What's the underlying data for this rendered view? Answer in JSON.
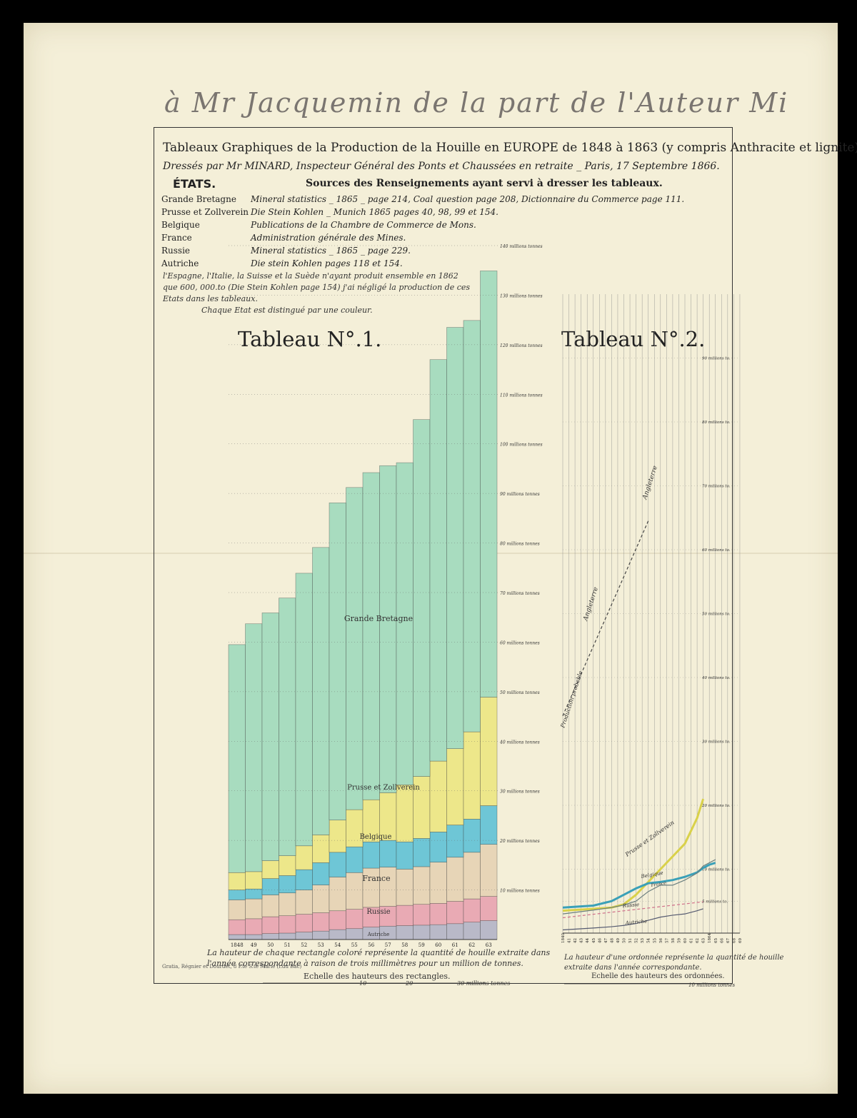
{
  "inscription": "à Mr Jacquemin de la part de l'Auteur Mi",
  "header": {
    "title": "Tableaux Graphiques de la Production de la Houille en EUROPE de 1848 à 1863 (y compris Anthracite et lignite)",
    "subtitle": "Dressés par Mr MINARD, Inspecteur Général des Ponts et Chaussées en retraite _ Paris, 17 Septembre 1866.",
    "etats_label": "ÉTATS.",
    "sources_heading": "Sources des Renseignements ayant servi à dresser les tableaux."
  },
  "sources": [
    {
      "state": "Grande Bretagne",
      "text": "Mineral statistics _ 1865 _ page 214, Coal question page 208, Dictionnaire du Commerce page 111."
    },
    {
      "state": "Prusse et Zollverein",
      "text": "Die Stein Kohlen _ Munich 1865 pages 40, 98, 99 et 154."
    },
    {
      "state": "Belgique",
      "text": "Publications de la Chambre de Commerce de Mons."
    },
    {
      "state": "France",
      "text": "Administration générale des Mines."
    },
    {
      "state": "Russie",
      "text": "Mineral statistics _ 1865 _ page 229."
    },
    {
      "state": "Autriche",
      "text": "Die stein Kohlen pages 118 et 154."
    }
  ],
  "notes": {
    "line1": "l'Espagne, l'Italie, la Suisse et la Suède n'ayant produit ensemble en 1862",
    "line2": "que 600, 000.to (Die Stein Kohlen page 154) j'ai négligé la production de ces",
    "line3": "Etats dans les tableaux.",
    "line4": "Chaque Etat est distingué par une couleur."
  },
  "tableau1": {
    "title": "Tableau N°.1.",
    "caption1": "La hauteur de chaque rectangle coloré représente la quantité de houille extraite dans",
    "caption2": "l'année correspondante à raison de trois millimètres pour un million de tonnes.",
    "scale_label": "Echelle des hauteurs des rectangles.",
    "scale_ticks": [
      "10",
      "20",
      "30 millions tonnes"
    ]
  },
  "tableau2": {
    "title": "Tableau N°.2.",
    "caption1": "La hauteur d'une ordonnée représente la quantité de houille",
    "caption2": "extraite dans l'année correspondante.",
    "scale_label": "Echelle des hauteurs des ordonnées.",
    "scale_end": "10 millions tonnes",
    "line_labels": {
      "angleterre": "Angleterre",
      "probable": "Production probable",
      "prusse": "Prusse et Zollverein",
      "belgique": "Belgique",
      "france": "France",
      "russie": "Russie",
      "autriche": "Autriche"
    }
  },
  "stamp": "Gratia, Régnier et Dourdet, 8 P.te S.te Marie (r.du Bac)",
  "chart_data": [
    {
      "type": "bar",
      "stacked": true,
      "categories": [
        "1848",
        "49",
        "50",
        "51",
        "52",
        "53",
        "54",
        "55",
        "56",
        "57",
        "58",
        "59",
        "60",
        "61",
        "62",
        "63"
      ],
      "series": [
        {
          "name": "Autriche",
          "color": "#b9b9c8",
          "values": [
            1,
            1,
            1.2,
            1.3,
            1.5,
            1.7,
            2,
            2.2,
            2.5,
            2.7,
            2.8,
            2.9,
            3,
            3.2,
            3.5,
            3.8
          ]
        },
        {
          "name": "Russie",
          "color": "#e9aab4",
          "values": [
            3,
            3.2,
            3.4,
            3.5,
            3.6,
            3.7,
            3.8,
            3.9,
            4,
            4,
            4.1,
            4.2,
            4.3,
            4.5,
            4.7,
            4.9
          ]
        },
        {
          "name": "France",
          "color": "#e7d5b7",
          "values": [
            4,
            4,
            4.4,
            4.6,
            4.9,
            5.6,
            6.8,
            7.4,
            7.9,
            7.9,
            7.3,
            7.6,
            8.3,
            8.9,
            9.4,
            10.5
          ]
        },
        {
          "name": "Belgique",
          "color": "#6ec6d6",
          "values": [
            2,
            2,
            3.3,
            3.5,
            4.1,
            4.5,
            5,
            5.2,
            5.3,
            5.4,
            5.5,
            5.7,
            6.1,
            6.5,
            6.7,
            7.8
          ]
        },
        {
          "name": "Prusse et Zollverein",
          "color": "#ede78a",
          "values": [
            3.5,
            3.5,
            3.6,
            4,
            4.8,
            5.6,
            6.5,
            7.5,
            8.5,
            9.6,
            11.5,
            12.5,
            14.3,
            15.4,
            17.6,
            21.9
          ]
        },
        {
          "name": "Grande Bretagne",
          "color": "#a8dcbf",
          "values": [
            46,
            50,
            50,
            52,
            55,
            58,
            64,
            65,
            66,
            66,
            65,
            72,
            81,
            85,
            83,
            86
          ]
        }
      ],
      "ylim": [
        0,
        140
      ],
      "ytick_labels": [
        "10 millions tonnes",
        "20 millions tonnes",
        "30 millions tonnes",
        "40 millions tonnes",
        "50 millions tonnes",
        "60 millions tonnes",
        "70 millions tonnes",
        "80 millions tonnes",
        "90 millions tonnes",
        "100 millions tonnes",
        "110 millions tonnes",
        "120 millions tonnes",
        "130 millions tonnes",
        "140 millions tonnes"
      ]
    },
    {
      "type": "line",
      "x": [
        "1840",
        "41",
        "42",
        "43",
        "44",
        "45",
        "46",
        "47",
        "48",
        "49",
        "50",
        "51",
        "52",
        "53",
        "54",
        "55",
        "56",
        "57",
        "58",
        "59",
        "60",
        "61",
        "62",
        "63",
        "1864",
        "65",
        "66",
        "67",
        "68",
        "69"
      ],
      "series": [
        {
          "name": "Angleterre",
          "color": "#2e6b4a",
          "x": [
            "1854",
            "55",
            "56",
            "57",
            "58",
            "59",
            "60",
            "61",
            "62",
            "63"
          ],
          "values": [
            64.5,
            64.8,
            66.6,
            65.4,
            65,
            72,
            80,
            85.6,
            83.6,
            88
          ]
        },
        {
          "name": "Production probable",
          "color": "#444444",
          "dashed": true,
          "x": [
            "1840",
            "54"
          ],
          "values": [
            34,
            64.5
          ]
        },
        {
          "name": "Prusse et Zollverein",
          "color": "#d9d14a",
          "x": [
            "1840",
            "45",
            "48",
            "50",
            "52",
            "54",
            "56",
            "58",
            "60",
            "62",
            "63"
          ],
          "values": [
            3.5,
            3.8,
            4,
            4.5,
            6,
            8,
            10,
            12,
            14,
            18,
            21
          ]
        },
        {
          "name": "Belgique",
          "color": "#3aa0b8",
          "x": [
            "1840",
            "45",
            "48",
            "50",
            "52",
            "54",
            "56",
            "58",
            "60",
            "62",
            "63",
            "1864",
            "65"
          ],
          "values": [
            4,
            4.3,
            5,
            6,
            7,
            7.8,
            8,
            8.3,
            8.8,
            9.5,
            10.2,
            10.7,
            11
          ]
        },
        {
          "name": "France",
          "color": "#6b7f7f",
          "x": [
            "1840",
            "45",
            "48",
            "50",
            "52",
            "54",
            "56",
            "58",
            "60",
            "62",
            "63",
            "1864",
            "65"
          ],
          "values": [
            3,
            3.6,
            4,
            4.4,
            5,
            6.5,
            7.5,
            7.5,
            8.3,
            9.4,
            10.5,
            11,
            11.5
          ]
        },
        {
          "name": "Russie",
          "color": "#d0708a",
          "dashed": true,
          "x": [
            "1840",
            "63"
          ],
          "values": [
            2.4,
            4.9
          ]
        },
        {
          "name": "Autriche",
          "color": "#555a70",
          "x": [
            "1840",
            "45",
            "48",
            "50",
            "52",
            "54",
            "56",
            "58",
            "60",
            "62",
            "63"
          ],
          "values": [
            0.5,
            0.8,
            1,
            1.2,
            1.5,
            2,
            2.5,
            2.8,
            3,
            3.5,
            3.8
          ]
        },
        {
          "name": "",
          "color": "#d05060",
          "dashed": true,
          "x": [
            "1863",
            "69"
          ],
          "values": [
            10.5,
            14
          ]
        }
      ],
      "ylim": [
        0,
        100
      ],
      "ytick_labels": [
        "5 millions to.",
        "10 millions to.",
        "20 millions to.",
        "30 millions to.",
        "40 millions to.",
        "50 millions to.",
        "60 millions to.",
        "70 millions to.",
        "80 millions to.",
        "90 millions to."
      ]
    }
  ]
}
